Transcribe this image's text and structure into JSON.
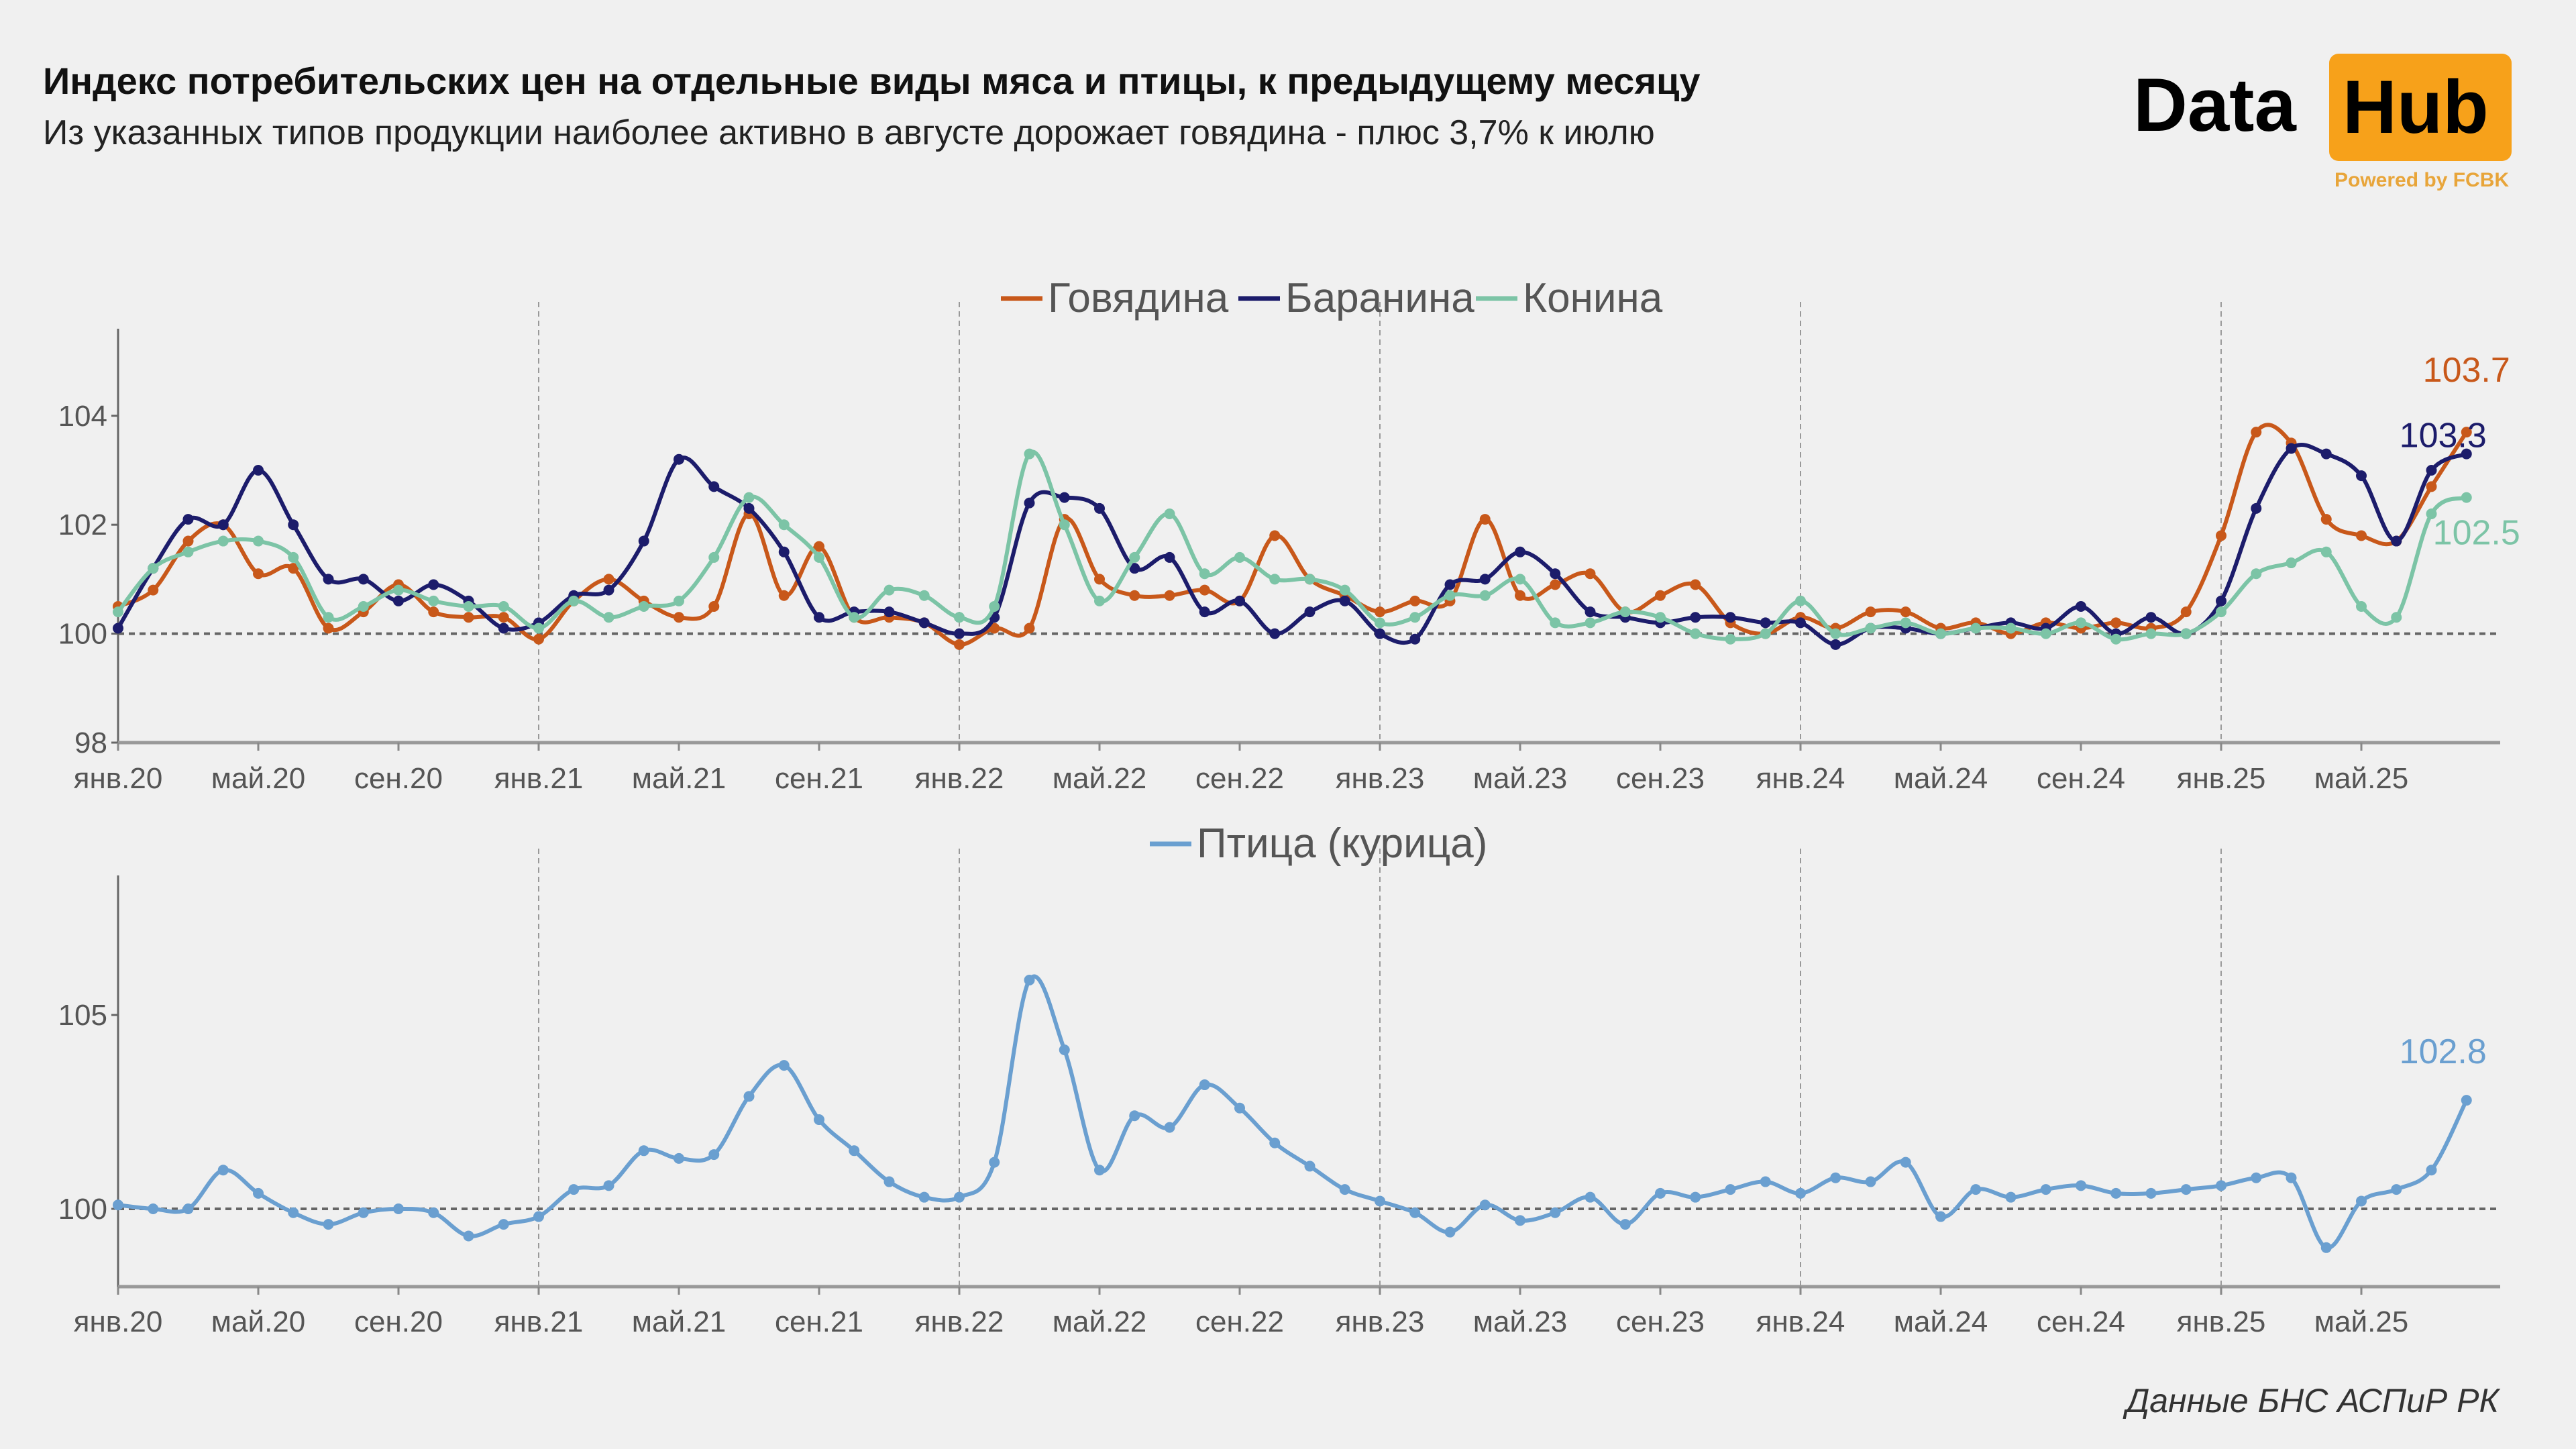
{
  "header": {
    "title": "Индекс потребительских цен на отдельные виды мяса и птицы, к предыдущему месяцу",
    "subtitle": "Из указанных типов продукции наиболее активно в августе дорожает говядина - плюс 3,7% к июлю"
  },
  "logo": {
    "text_left": "Data",
    "text_right": "Hub",
    "tagline": "Powered by FCBK",
    "accent": "#f7a11a"
  },
  "source": "Данные БНС АСПиР РК",
  "chart_data": [
    {
      "type": "line",
      "title": "",
      "xlabel": "",
      "ylabel": "",
      "ylim": [
        98,
        105.5
      ],
      "yticks": [
        "98",
        "100",
        "102",
        "104"
      ],
      "ytick_values": [
        98,
        100,
        102,
        104
      ],
      "reference_line": 100,
      "grid": "dashed vertical lines at January of each year",
      "legend": "top-center",
      "x_start": "2020-01",
      "xtick_labels": [
        "янв.20",
        "май.20",
        "сен.20",
        "янв.21",
        "май.21",
        "сен.21",
        "янв.22",
        "май.22",
        "сен.22",
        "янв.23",
        "май.23",
        "сен.23",
        "янв.24",
        "май.24",
        "сен.24",
        "янв.25",
        "май.25"
      ],
      "series": [
        {
          "name": "Говядина",
          "color": "#c8581a",
          "end_label": "103.7",
          "values": [
            100.5,
            100.8,
            101.7,
            102.0,
            101.1,
            101.2,
            100.1,
            100.4,
            100.9,
            100.4,
            100.3,
            100.3,
            99.9,
            100.6,
            101.0,
            100.6,
            100.3,
            100.5,
            102.2,
            100.7,
            101.6,
            100.3,
            100.3,
            100.2,
            99.8,
            100.1,
            100.1,
            102.1,
            101.0,
            100.7,
            100.7,
            100.8,
            100.6,
            101.8,
            101.0,
            100.7,
            100.4,
            100.6,
            100.6,
            102.1,
            100.7,
            100.9,
            101.1,
            100.4,
            100.7,
            100.9,
            100.2,
            100.0,
            100.3,
            100.1,
            100.4,
            100.4,
            100.1,
            100.2,
            100.0,
            100.2,
            100.1,
            100.2,
            100.1,
            100.4,
            101.8,
            103.7,
            103.5,
            102.1,
            101.8,
            101.7,
            102.7,
            103.7
          ]
        },
        {
          "name": "Баранина",
          "color": "#1c1c6b",
          "end_label": "103.3",
          "values": [
            100.1,
            101.2,
            102.1,
            102.0,
            103.0,
            102.0,
            101.0,
            101.0,
            100.6,
            100.9,
            100.6,
            100.1,
            100.2,
            100.7,
            100.8,
            101.7,
            103.2,
            102.7,
            102.3,
            101.5,
            100.3,
            100.4,
            100.4,
            100.2,
            100.0,
            100.3,
            102.4,
            102.5,
            102.3,
            101.2,
            101.4,
            100.4,
            100.6,
            100.0,
            100.4,
            100.6,
            100.0,
            99.9,
            100.9,
            101.0,
            101.5,
            101.1,
            100.4,
            100.3,
            100.2,
            100.3,
            100.3,
            100.2,
            100.2,
            99.8,
            100.1,
            100.1,
            100.0,
            100.1,
            100.2,
            100.1,
            100.5,
            100.0,
            100.3,
            100.0,
            100.6,
            102.3,
            103.4,
            103.3,
            102.9,
            101.7,
            103.0,
            103.3
          ]
        },
        {
          "name": "Конина",
          "color": "#7cc4a6",
          "end_label": "102.5",
          "values": [
            100.4,
            101.2,
            101.5,
            101.7,
            101.7,
            101.4,
            100.3,
            100.5,
            100.8,
            100.6,
            100.5,
            100.5,
            100.1,
            100.6,
            100.3,
            100.5,
            100.6,
            101.4,
            102.5,
            102.0,
            101.4,
            100.3,
            100.8,
            100.7,
            100.3,
            100.5,
            103.3,
            102.0,
            100.6,
            101.4,
            102.2,
            101.1,
            101.4,
            101.0,
            101.0,
            100.8,
            100.2,
            100.3,
            100.7,
            100.7,
            101.0,
            100.2,
            100.2,
            100.4,
            100.3,
            100.0,
            99.9,
            100.0,
            100.6,
            100.0,
            100.1,
            100.2,
            100.0,
            100.1,
            100.1,
            100.0,
            100.2,
            99.9,
            100.0,
            100.0,
            100.4,
            101.1,
            101.3,
            101.5,
            100.5,
            100.3,
            102.2,
            102.5
          ]
        }
      ]
    },
    {
      "type": "line",
      "title": "",
      "xlabel": "",
      "ylabel": "",
      "ylim": [
        98,
        106.5
      ],
      "yticks": [
        "100",
        "105"
      ],
      "ytick_values": [
        100,
        105
      ],
      "reference_line": 100,
      "grid": "dashed vertical lines at January of each year",
      "legend": "top-center",
      "x_start": "2020-01",
      "xtick_labels": [
        "янв.20",
        "май.20",
        "сен.20",
        "янв.21",
        "май.21",
        "сен.21",
        "янв.22",
        "май.22",
        "сен.22",
        "янв.23",
        "май.23",
        "сен.23",
        "янв.24",
        "май.24",
        "сен.24",
        "янв.25",
        "май.25"
      ],
      "series": [
        {
          "name": "Птица (курица)",
          "color": "#6a9fd0",
          "end_label": "102.8",
          "values": [
            100.1,
            100.0,
            100.0,
            101.0,
            100.4,
            99.9,
            99.6,
            99.9,
            100.0,
            99.9,
            99.3,
            99.6,
            99.8,
            100.5,
            100.6,
            101.5,
            101.3,
            101.4,
            102.9,
            103.7,
            102.3,
            101.5,
            100.7,
            100.3,
            100.3,
            101.2,
            105.9,
            104.1,
            101.0,
            102.4,
            102.1,
            103.2,
            102.6,
            101.7,
            101.1,
            100.5,
            100.2,
            99.9,
            99.4,
            100.1,
            99.7,
            99.9,
            100.3,
            99.6,
            100.4,
            100.3,
            100.5,
            100.7,
            100.4,
            100.8,
            100.7,
            101.2,
            99.8,
            100.5,
            100.3,
            100.5,
            100.6,
            100.4,
            100.4,
            100.5,
            100.6,
            100.8,
            100.8,
            99.0,
            100.2,
            100.5,
            101.0,
            102.8
          ]
        }
      ]
    }
  ]
}
